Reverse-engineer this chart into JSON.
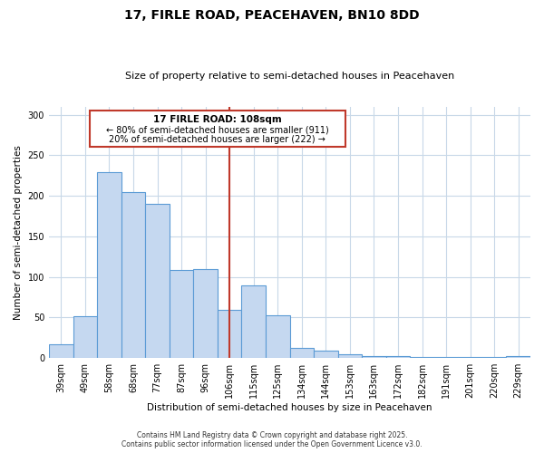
{
  "title": "17, FIRLE ROAD, PEACEHAVEN, BN10 8DD",
  "subtitle": "Size of property relative to semi-detached houses in Peacehaven",
  "xlabel": "Distribution of semi-detached houses by size in Peacehaven",
  "ylabel": "Number of semi-detached properties",
  "categories": [
    "39sqm",
    "49sqm",
    "58sqm",
    "68sqm",
    "77sqm",
    "87sqm",
    "96sqm",
    "106sqm",
    "115sqm",
    "125sqm",
    "134sqm",
    "144sqm",
    "153sqm",
    "163sqm",
    "172sqm",
    "182sqm",
    "191sqm",
    "201sqm",
    "220sqm",
    "229sqm"
  ],
  "values": [
    17,
    52,
    229,
    205,
    190,
    108,
    110,
    59,
    90,
    53,
    13,
    9,
    5,
    3,
    2,
    1,
    1,
    1,
    1,
    2
  ],
  "bar_color": "#c5d8f0",
  "bar_edge_color": "#5b9bd5",
  "annotation_text_title": "17 FIRLE ROAD: 108sqm",
  "annotation_text_line2": "← 80% of semi-detached houses are smaller (911)",
  "annotation_text_line3": "20% of semi-detached houses are larger (222) →",
  "vline_color": "#c0392b",
  "footer_line1": "Contains HM Land Registry data © Crown copyright and database right 2025.",
  "footer_line2": "Contains public sector information licensed under the Open Government Licence v3.0.",
  "background_color": "#ffffff",
  "grid_color": "#c8d8e8",
  "ylim": [
    0,
    310
  ],
  "yticks": [
    0,
    50,
    100,
    150,
    200,
    250,
    300
  ],
  "vline_index": 7
}
